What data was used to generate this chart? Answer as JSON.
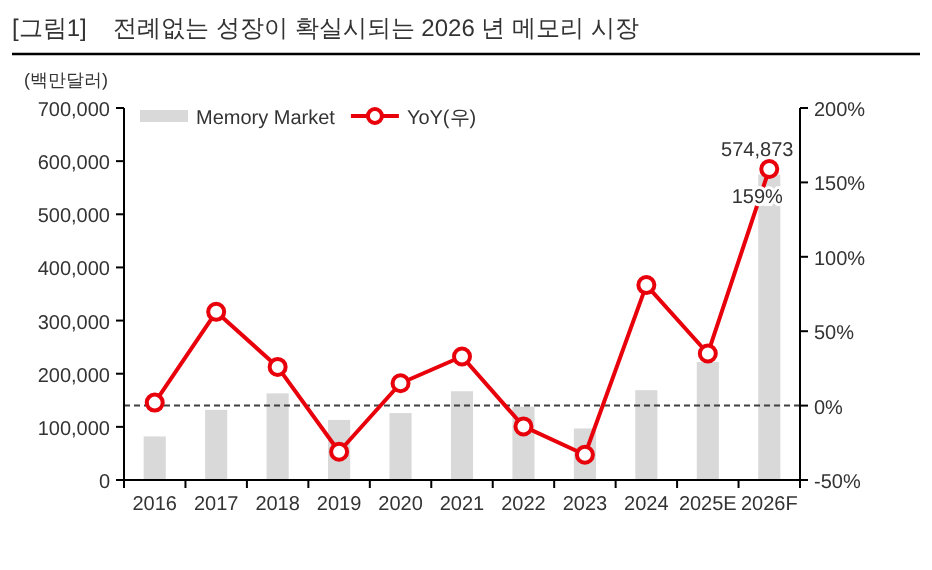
{
  "chart_data": {
    "type": "bar",
    "title": "[그림1]    전례없는 성장이 확실시되는 2026 년 메모리 시장",
    "ylabel": "(백만달러)",
    "categories": [
      "2016",
      "2017",
      "2018",
      "2019",
      "2020",
      "2021",
      "2022",
      "2023",
      "2024",
      "2025E",
      "2026F"
    ],
    "series": [
      {
        "name": "Memory Market",
        "color": "#d9d9d9",
        "values": [
          82000,
          132000,
          163000,
          113000,
          126000,
          167000,
          138000,
          97000,
          169000,
          222000,
          574873
        ],
        "value_labels": [
          null,
          null,
          null,
          null,
          null,
          null,
          null,
          null,
          null,
          null,
          "574,873"
        ]
      },
      {
        "name": "YoY(우)",
        "type": "line",
        "axis": "y2",
        "color": "#e8000b",
        "marker": "circle",
        "line_style": "solid",
        "values": [
          2,
          63,
          26,
          -31,
          15,
          33,
          -14,
          -33,
          81,
          35,
          159
        ],
        "value_labels": [
          null,
          null,
          null,
          null,
          null,
          null,
          null,
          null,
          null,
          null,
          "159%"
        ]
      }
    ],
    "ylim": [
      0,
      700000
    ],
    "yticks": [
      {
        "value": 0,
        "label": "0"
      },
      {
        "value": 100000,
        "label": "100,000"
      },
      {
        "value": 200000,
        "label": "200,000"
      },
      {
        "value": 300000,
        "label": "300,000"
      },
      {
        "value": 400000,
        "label": "400,000"
      },
      {
        "value": 500000,
        "label": "500,000"
      },
      {
        "value": 600000,
        "label": "600,000"
      },
      {
        "value": 700000,
        "label": "700,000"
      }
    ],
    "y2lim": [
      -50,
      200
    ],
    "y2ticks": [
      {
        "value": -50,
        "label": "-50%"
      },
      {
        "value": 0,
        "label": "0%"
      },
      {
        "value": 50,
        "label": "50%"
      },
      {
        "value": 100,
        "label": "100%"
      },
      {
        "value": 150,
        "label": "150%"
      },
      {
        "value": 200,
        "label": "200%"
      }
    ],
    "ref_lines": [
      {
        "axis": "y2",
        "value": 0,
        "color": "#404040",
        "line_style": "dashed"
      }
    ],
    "legend": "top left",
    "grid": false
  }
}
